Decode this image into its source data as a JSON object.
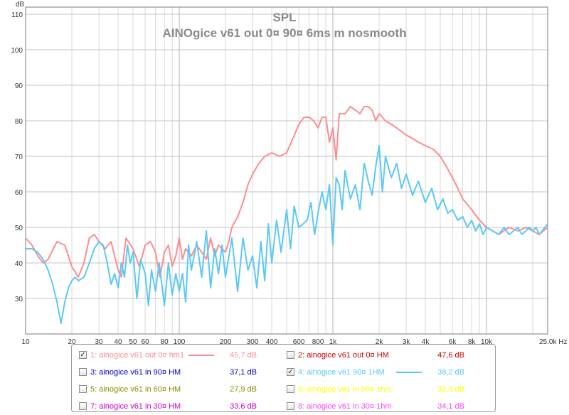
{
  "chart_data": {
    "type": "line",
    "title": "SPL",
    "subtitle": "AINOgice v61 out 0¤ 90¤ 6ms m nosmooth",
    "ylabel": "dB",
    "x_scale": "log",
    "xlim": [
      10,
      25000
    ],
    "ylim": [
      20,
      112
    ],
    "grid": true,
    "yticks": [
      30,
      40,
      50,
      60,
      70,
      80,
      90,
      100,
      110
    ],
    "ytick_labels": [
      "30",
      "40",
      "50",
      "60",
      "70",
      "80",
      "90",
      "100",
      "110"
    ],
    "xticks": [
      10,
      20,
      30,
      40,
      50,
      60,
      80,
      100,
      200,
      300,
      400,
      600,
      800,
      1000,
      2000,
      3000,
      4000,
      6000,
      8000,
      10000,
      25000
    ],
    "xtick_labels": [
      "10",
      "20",
      "30",
      "40",
      "50",
      "60",
      "80",
      "100",
      "200",
      "300",
      "400",
      "600",
      "800",
      "1k",
      "2k",
      "3k",
      "4k",
      "6k",
      "8k",
      "10k",
      "25,0k Hz"
    ],
    "series": [
      {
        "name": "1: ainogice v61 out 0¤ hm1",
        "color": "#ff8c8c",
        "x": [
          10,
          11,
          12,
          13,
          14,
          16,
          18,
          20,
          22,
          24,
          26,
          28,
          30,
          33,
          36,
          40,
          42,
          45,
          50,
          55,
          60,
          65,
          70,
          75,
          80,
          85,
          90,
          95,
          100,
          105,
          110,
          120,
          130,
          140,
          150,
          160,
          170,
          180,
          190,
          200,
          210,
          220,
          240,
          260,
          280,
          300,
          330,
          360,
          400,
          450,
          500,
          550,
          600,
          650,
          700,
          750,
          800,
          850,
          900,
          950,
          1000,
          1050,
          1100,
          1200,
          1300,
          1400,
          1500,
          1600,
          1700,
          1800,
          1900,
          2000,
          2200,
          2400,
          2600,
          2800,
          3000,
          3300,
          3600,
          4000,
          4500,
          5000,
          5500,
          6000,
          6500,
          7000,
          8000,
          9000,
          10000,
          11000,
          12000,
          14000,
          16000,
          18000,
          20000,
          22000,
          25000
        ],
        "y": [
          47,
          45,
          42,
          40,
          41,
          46,
          45,
          39,
          36,
          40,
          47,
          48,
          46,
          44,
          46,
          38,
          36,
          47,
          44,
          39,
          45,
          46,
          43,
          36,
          43,
          45,
          39,
          42,
          47,
          41,
          44,
          42,
          45,
          43,
          41,
          47,
          42,
          45,
          44,
          43,
          46,
          50,
          53,
          57,
          62,
          65,
          68,
          70,
          71,
          70,
          71,
          75,
          79,
          81,
          81,
          80,
          78,
          81,
          81,
          74,
          78,
          69,
          82,
          82,
          84,
          83,
          82,
          84,
          84,
          83,
          80,
          82,
          80,
          79,
          78,
          77,
          76,
          75,
          74,
          73,
          72,
          70,
          67,
          64,
          61,
          58,
          55,
          52,
          50,
          49,
          48,
          50,
          49,
          50,
          49,
          48,
          50
        ]
      },
      {
        "name": "4: ainogice v61 90¤ 1HM",
        "color": "#5ac8f8",
        "x": [
          10,
          11,
          12,
          13,
          14,
          15,
          16,
          17,
          18,
          19,
          20,
          21,
          22,
          24,
          26,
          28,
          30,
          32,
          34,
          36,
          38,
          40,
          42,
          44,
          46,
          48,
          50,
          53,
          56,
          60,
          63,
          66,
          70,
          74,
          78,
          80,
          85,
          90,
          95,
          100,
          105,
          110,
          115,
          120,
          130,
          140,
          150,
          160,
          170,
          180,
          190,
          200,
          220,
          240,
          260,
          280,
          300,
          320,
          340,
          360,
          380,
          400,
          430,
          460,
          500,
          530,
          560,
          600,
          640,
          680,
          720,
          760,
          800,
          850,
          900,
          950,
          1000,
          1050,
          1100,
          1150,
          1200,
          1300,
          1400,
          1500,
          1600,
          1700,
          1800,
          1900,
          2000,
          2100,
          2200,
          2400,
          2600,
          2800,
          3000,
          3300,
          3600,
          4000,
          4400,
          4800,
          5200,
          5600,
          6000,
          6500,
          7000,
          7500,
          8000,
          8500,
          9000,
          9500,
          10000,
          11000,
          12000,
          13000,
          14000,
          15000,
          16000,
          17000,
          18000,
          19000,
          20000,
          21000,
          22000,
          23000,
          24000,
          25000
        ],
        "y": [
          44,
          44,
          43,
          41,
          38,
          34,
          29,
          23,
          29,
          33,
          35,
          36,
          35,
          36,
          40,
          44,
          46,
          45,
          40,
          34,
          37,
          33,
          40,
          36,
          45,
          40,
          43,
          30,
          41,
          37,
          28,
          38,
          32,
          40,
          32,
          28,
          40,
          31,
          37,
          32,
          37,
          29,
          45,
          38,
          46,
          36,
          49,
          33,
          44,
          37,
          45,
          36,
          47,
          32,
          47,
          38,
          42,
          33,
          46,
          35,
          51,
          40,
          52,
          43,
          55,
          44,
          56,
          50,
          51,
          52,
          57,
          48,
          54,
          60,
          55,
          62,
          45,
          64,
          62,
          55,
          66,
          58,
          62,
          55,
          68,
          63,
          59,
          67,
          73,
          60,
          70,
          64,
          68,
          61,
          65,
          59,
          63,
          57,
          61,
          55,
          58,
          54,
          55,
          52,
          53,
          50,
          52,
          49,
          51,
          48,
          50,
          49,
          48,
          50,
          48,
          49,
          50,
          48,
          49,
          50,
          49,
          50,
          48,
          49,
          50,
          51
        ]
      }
    ],
    "legend": [
      {
        "label": "1: ainogice v61 out 0¤ hm1",
        "value": "45,7 dB",
        "checked": true,
        "color": "#ff8c8c"
      },
      {
        "label": "2: ainogice v61 out 0¤ HM",
        "value": "47,6 dB",
        "checked": false,
        "color": "#cc0000"
      },
      {
        "label": "3: ainogice v61 in 90¤ HM",
        "value": "37,1 dB",
        "checked": false,
        "color": "#0000cc"
      },
      {
        "label": "4: ainogice v61 90¤ 1HM",
        "value": "38,2 dB",
        "checked": true,
        "color": "#5ac8f8"
      },
      {
        "label": "5: ainogice v61 in 60¤ HM",
        "value": "27,9 dB",
        "checked": false,
        "color": "#8c8c00"
      },
      {
        "label": "6: ainogice v61 in 60¤ 1hm",
        "value": "32,3 dB",
        "checked": false,
        "color": "#ffff00"
      },
      {
        "label": "7: ainogice v61 in 30¤ HM",
        "value": "33,6 dB",
        "checked": false,
        "color": "#cc00cc"
      },
      {
        "label": "8: ainogice v61 in 30¤ 1hm",
        "value": "34,1 dB",
        "checked": false,
        "color": "#ff44ff"
      }
    ]
  }
}
